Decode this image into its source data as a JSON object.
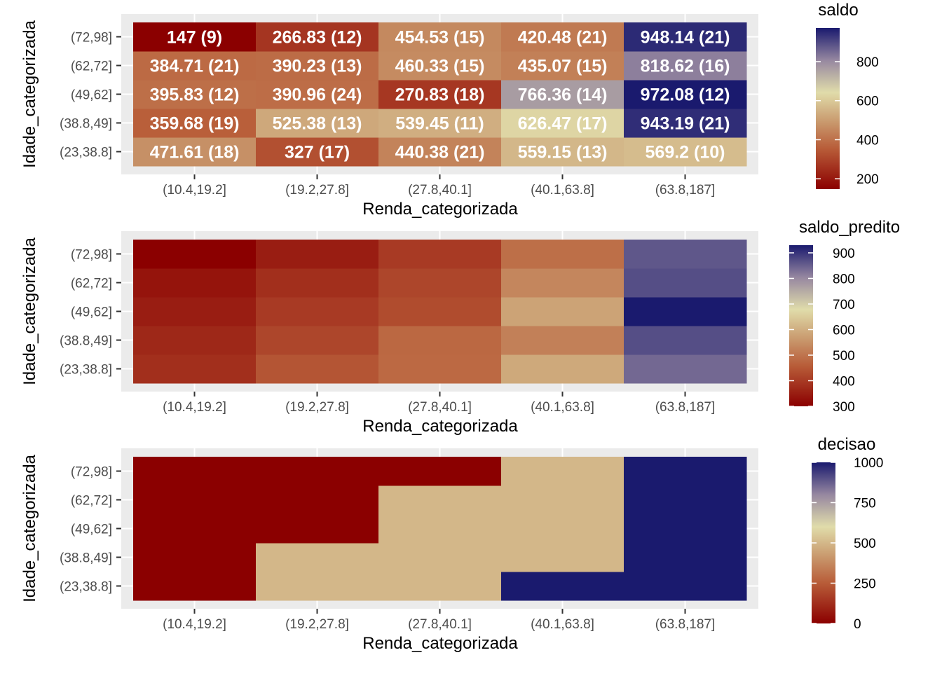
{
  "chart_data": [
    {
      "type": "heatmap",
      "xlabel": "Renda_categorizada",
      "ylabel": "Idade_categorizada",
      "x_categories": [
        "(10.4,19.2]",
        "(19.2,27.8]",
        "(27.8,40.1]",
        "(40.1,63.8]",
        "(63.8,187]"
      ],
      "y_categories": [
        "(23,38.8]",
        "(38.8,49]",
        "(49,62]",
        "(62,72]",
        "(72,98]"
      ],
      "values": [
        [
          471.61,
          327,
          440.38,
          559.15,
          569.2
        ],
        [
          359.68,
          525.38,
          539.45,
          626.47,
          943.19
        ],
        [
          395.83,
          390.96,
          270.83,
          766.36,
          972.08
        ],
        [
          384.71,
          390.23,
          460.33,
          435.07,
          818.62
        ],
        [
          147,
          266.83,
          454.53,
          420.48,
          948.14
        ]
      ],
      "cell_labels": [
        [
          "471.61 (18)",
          "327 (17)",
          "440.38 (21)",
          "559.15 (13)",
          "569.2 (10)"
        ],
        [
          "359.68 (19)",
          "525.38 (13)",
          "539.45 (11)",
          "626.47 (17)",
          "943.19 (21)"
        ],
        [
          "395.83 (12)",
          "390.96 (24)",
          "270.83 (18)",
          "766.36 (14)",
          "972.08 (12)"
        ],
        [
          "384.71 (21)",
          "390.23 (13)",
          "460.33 (15)",
          "435.07 (15)",
          "818.62 (16)"
        ],
        [
          "147 (9)",
          "266.83 (12)",
          "454.53 (15)",
          "420.48 (21)",
          "948.14 (21)"
        ]
      ],
      "legend": {
        "title": "saldo",
        "range": [
          147,
          972.08
        ],
        "ticks": [
          200,
          400,
          600,
          800
        ],
        "tick_labels": [
          "200",
          "400",
          "600",
          "800"
        ]
      }
    },
    {
      "type": "heatmap",
      "xlabel": "Renda_categorizada",
      "ylabel": "Idade_categorizada",
      "x_categories": [
        "(10.4,19.2]",
        "(19.2,27.8]",
        "(27.8,40.1]",
        "(40.1,63.8]",
        "(63.8,187]"
      ],
      "y_categories": [
        "(23,38.8]",
        "(38.8,49]",
        "(49,62]",
        "(62,72]",
        "(72,98]"
      ],
      "values": [
        [
          380,
          445,
          480,
          590,
          840
        ],
        [
          368,
          420,
          478,
          520,
          870
        ],
        [
          350,
          400,
          430,
          580,
          930
        ],
        [
          335,
          380,
          420,
          530,
          870
        ],
        [
          300,
          350,
          400,
          490,
          860
        ]
      ],
      "legend": {
        "title": "saldo_predito",
        "range": [
          300,
          930
        ],
        "ticks": [
          300,
          400,
          500,
          600,
          700,
          800,
          900
        ],
        "tick_labels": [
          "300",
          "400",
          "500",
          "600",
          "700",
          "800",
          "900"
        ]
      }
    },
    {
      "type": "heatmap",
      "xlabel": "Renda_categorizada",
      "ylabel": "Idade_categorizada",
      "x_categories": [
        "(10.4,19.2]",
        "(19.2,27.8]",
        "(27.8,40.1]",
        "(40.1,63.8]",
        "(63.8,187]"
      ],
      "y_categories": [
        "(23,38.8]",
        "(38.8,49]",
        "(49,62]",
        "(62,72]",
        "(72,98]"
      ],
      "values": [
        [
          0,
          500,
          500,
          1000,
          1000
        ],
        [
          0,
          500,
          500,
          500,
          1000
        ],
        [
          0,
          0,
          500,
          500,
          1000
        ],
        [
          0,
          0,
          500,
          500,
          1000
        ],
        [
          0,
          0,
          0,
          500,
          1000
        ]
      ],
      "legend": {
        "title": "decisao",
        "range": [
          0,
          1000
        ],
        "ticks": [
          0,
          250,
          500,
          750,
          1000
        ],
        "tick_labels": [
          "0",
          "250",
          "500",
          "750",
          "1000"
        ]
      }
    }
  ],
  "colors": {
    "low": "#8b0000",
    "mid": "#e0dcaa",
    "high": "#1a1a6e",
    "panel_background": "#ebebeb",
    "grid": "#ffffff",
    "tick_text": "#4d4d4d"
  }
}
